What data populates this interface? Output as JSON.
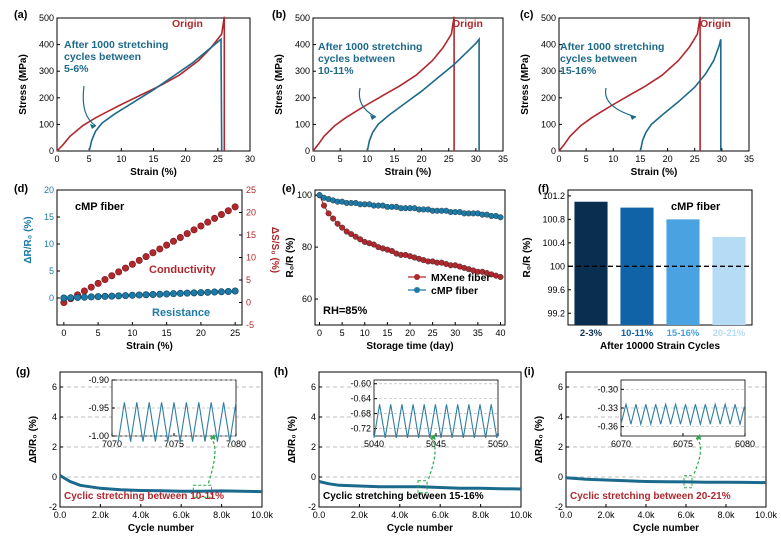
{
  "colors": {
    "origin": "#b0282e",
    "stretched": "#1d6a8a",
    "mxene": "#b0282e",
    "cmp": "#1d7aa6",
    "cycle": "#1b6a8e",
    "inset_line": "#2f7ea2",
    "callout": "#2aa84a",
    "bar_colors": [
      "#0a2e4f",
      "#0f63a6",
      "#4aa3e0",
      "#b6dcf5"
    ]
  },
  "chart_data": [
    {
      "panel": "(a)",
      "type": "line",
      "xlabel": "Strain (%)",
      "ylabel": "Stress (MPa)",
      "xlim": [
        0,
        30
      ],
      "ylim": [
        0,
        500
      ],
      "xticks": [
        0,
        5,
        10,
        15,
        20,
        25,
        30
      ],
      "yticks": [
        0,
        100,
        200,
        300,
        400,
        500
      ],
      "annotations": [
        "Origin",
        "After 1000 stretching",
        "cycles between",
        "5-6%"
      ],
      "series": [
        {
          "name": "Origin",
          "color_key": "origin",
          "x": [
            0,
            1,
            2,
            4,
            6,
            8,
            10,
            13,
            16,
            19,
            22,
            24,
            25.6,
            26,
            26
          ],
          "y": [
            0,
            25,
            55,
            95,
            125,
            150,
            175,
            210,
            245,
            285,
            340,
            390,
            440,
            505,
            0
          ]
        },
        {
          "name": "After 1000 stretching cycles between 5-6%",
          "color_key": "stretched",
          "x": [
            5,
            5.4,
            6,
            7,
            9,
            12,
            15,
            18,
            21,
            23.5,
            25,
            25.5,
            25.6
          ],
          "y": [
            0,
            40,
            75,
            105,
            140,
            185,
            230,
            280,
            330,
            380,
            410,
            420,
            0
          ]
        }
      ]
    },
    {
      "panel": "(b)",
      "type": "line",
      "xlabel": "Strain (%)",
      "ylabel": "Stress (MPa)",
      "xlim": [
        0,
        35
      ],
      "ylim": [
        0,
        500
      ],
      "xticks": [
        0,
        5,
        10,
        15,
        20,
        25,
        30,
        35
      ],
      "yticks": [
        0,
        100,
        200,
        300,
        400,
        500
      ],
      "annotations": [
        "Origin",
        "After 1000 stretching",
        "cycles between",
        "10-11%"
      ],
      "series": [
        {
          "name": "Origin",
          "color_key": "origin",
          "x": [
            0,
            1,
            2,
            4,
            6,
            8,
            10,
            13,
            16,
            19,
            22,
            24,
            25.5,
            26,
            26
          ],
          "y": [
            0,
            25,
            55,
            95,
            125,
            150,
            175,
            210,
            245,
            285,
            340,
            390,
            440,
            505,
            0
          ]
        },
        {
          "name": "After 1000 stretching cycles between 10-11%",
          "color_key": "stretched",
          "x": [
            10,
            10.4,
            11,
            12,
            14,
            17,
            20,
            23,
            26,
            28.5,
            30,
            30.6,
            30.6
          ],
          "y": [
            0,
            40,
            70,
            100,
            135,
            180,
            225,
            275,
            325,
            375,
            405,
            420,
            0
          ]
        }
      ]
    },
    {
      "panel": "(c)",
      "type": "line",
      "xlabel": "Strain (%)",
      "ylabel": "Stress (MPa)",
      "xlim": [
        0,
        35
      ],
      "ylim": [
        0,
        500
      ],
      "xticks": [
        0,
        5,
        10,
        15,
        20,
        25,
        30,
        35
      ],
      "yticks": [
        0,
        100,
        200,
        300,
        400,
        500
      ],
      "annotations": [
        "Origin",
        "After 1000 stretching",
        "cycles between",
        "15-16%"
      ],
      "series": [
        {
          "name": "Origin",
          "color_key": "origin",
          "x": [
            0,
            1,
            2,
            4,
            6,
            8,
            10,
            13,
            16,
            19,
            22,
            24,
            25.5,
            26,
            26
          ],
          "y": [
            0,
            25,
            55,
            95,
            125,
            150,
            175,
            210,
            245,
            285,
            340,
            390,
            440,
            505,
            0
          ]
        },
        {
          "name": "After 1000 stretching cycles between 15-16%",
          "color_key": "stretched",
          "x": [
            15,
            15.4,
            16,
            17,
            19,
            22,
            25,
            27,
            28.5,
            29.5,
            29.8,
            29.8
          ],
          "y": [
            0,
            40,
            70,
            100,
            135,
            185,
            240,
            290,
            340,
            395,
            420,
            0
          ]
        }
      ]
    },
    {
      "panel": "(d)",
      "type": "scatter",
      "title": "cMP fiber",
      "xlabel": "Strain (%)",
      "ylabel": "ΔR/R₀ (%)",
      "y2label": "ΔS/S₀ (%)",
      "xlim": [
        -1,
        26
      ],
      "ylim": [
        -5,
        20
      ],
      "y2lim": [
        -5,
        25
      ],
      "xticks": [
        0,
        5,
        10,
        15,
        20,
        25
      ],
      "yticks": [
        0,
        5,
        10,
        15,
        20
      ],
      "y2ticks": [
        -5,
        0,
        5,
        10,
        15,
        20,
        25
      ],
      "annotations": [
        "Conductivity",
        "Resistance"
      ],
      "series": [
        {
          "name": "Conductivity",
          "axis": "right",
          "color_key": "origin",
          "x": [
            0,
            1,
            2,
            3,
            4,
            5,
            6,
            7,
            8,
            9,
            10,
            11,
            12,
            13,
            14,
            15,
            16,
            17,
            18,
            19,
            20,
            21,
            22,
            23,
            24,
            25
          ],
          "y": [
            0,
            0.85,
            1.7,
            2.55,
            3.4,
            4.25,
            5.1,
            5.95,
            6.8,
            7.65,
            8.5,
            9.35,
            10.2,
            11.05,
            11.9,
            12.75,
            13.6,
            14.45,
            15.3,
            16.15,
            17,
            17.85,
            18.7,
            19.55,
            20.4,
            21.25
          ]
        },
        {
          "name": "Resistance",
          "axis": "left",
          "color_key": "cmp",
          "x": [
            0,
            1,
            2,
            3,
            4,
            5,
            6,
            7,
            8,
            9,
            10,
            11,
            12,
            13,
            14,
            15,
            16,
            17,
            18,
            19,
            20,
            21,
            22,
            23,
            24,
            25
          ],
          "y": [
            0,
            0.05,
            0.1,
            0.15,
            0.2,
            0.25,
            0.3,
            0.35,
            0.4,
            0.45,
            0.5,
            0.55,
            0.6,
            0.65,
            0.7,
            0.75,
            0.8,
            0.85,
            0.9,
            0.95,
            1.0,
            1.05,
            1.1,
            1.15,
            1.2,
            1.3
          ]
        }
      ]
    },
    {
      "panel": "(e)",
      "type": "scatter",
      "xlabel": "Storage time (day)",
      "ylabel": "R₀/R (%)",
      "xlim": [
        -1,
        41
      ],
      "ylim": [
        50,
        102
      ],
      "xticks": [
        0,
        5,
        10,
        15,
        20,
        25,
        30,
        35,
        40
      ],
      "yticks": [
        60,
        80,
        100
      ],
      "annotations": [
        "RH=85%"
      ],
      "legend": [
        "MXene fiber",
        "cMP fiber"
      ],
      "series": [
        {
          "name": "MXene fiber",
          "color_key": "mxene",
          "x": [
            0,
            1,
            2,
            3,
            4,
            5,
            6,
            7,
            8,
            9,
            10,
            11,
            12,
            13,
            14,
            15,
            16,
            17,
            18,
            19,
            20,
            21,
            22,
            23,
            24,
            25,
            26,
            27,
            28,
            29,
            30,
            31,
            32,
            33,
            34,
            35,
            36,
            37,
            38,
            39,
            40
          ],
          "y": [
            100,
            96,
            93,
            91,
            89,
            87.5,
            86,
            85,
            84,
            83,
            82,
            81.5,
            81,
            80,
            79.5,
            79,
            78.5,
            77.5,
            77,
            77,
            76.5,
            76,
            75.5,
            75,
            74.5,
            74.5,
            74,
            74,
            73.5,
            73,
            73,
            72.5,
            72,
            71.5,
            71,
            70.5,
            70.5,
            70,
            69.5,
            69,
            68.5
          ]
        },
        {
          "name": "cMP fiber",
          "color_key": "cmp",
          "x": [
            0,
            1,
            2,
            3,
            4,
            5,
            6,
            7,
            8,
            9,
            10,
            11,
            12,
            13,
            14,
            15,
            16,
            17,
            18,
            19,
            20,
            21,
            22,
            23,
            24,
            25,
            26,
            27,
            28,
            29,
            30,
            31,
            32,
            33,
            34,
            35,
            36,
            37,
            38,
            39,
            40
          ],
          "y": [
            100,
            99,
            98.5,
            98,
            97.5,
            97.5,
            97,
            97,
            97,
            96.5,
            96.5,
            96.5,
            96,
            96,
            96,
            95.5,
            95.5,
            95.5,
            95,
            95,
            95,
            95,
            94.5,
            94.5,
            94.5,
            94,
            94,
            94,
            94,
            93.5,
            93.5,
            93.5,
            93,
            93,
            93,
            93,
            92.5,
            92.5,
            92,
            92,
            91.5
          ]
        }
      ]
    },
    {
      "panel": "(f)",
      "type": "bar",
      "title": "cMP fiber",
      "xlabel": "After 10000 Strain Cycles",
      "ylabel": "R₀/R (%)",
      "categories": [
        "2-3%",
        "10-11%",
        "15-16%",
        "20-21%"
      ],
      "values": [
        101.1,
        101.0,
        100.8,
        100.5
      ],
      "ylim": [
        99.0,
        101.3
      ],
      "yticks": [
        99.2,
        99.6,
        100.0,
        100.4,
        100.8,
        101.2
      ],
      "reference_line": 100.0
    },
    {
      "panel": "(g)",
      "type": "line",
      "xlabel": "Cycle number",
      "ylabel": "ΔR/R₀ (%)",
      "xlim": [
        0,
        10000
      ],
      "ylim": [
        -2,
        7
      ],
      "xticks": [
        "0.0",
        "2.0k",
        "4.0k",
        "6.0k",
        "8.0k",
        "10.0k"
      ],
      "yticks": [
        -2,
        0,
        2,
        4,
        6
      ],
      "annotations": [
        "Cyclic stretching between 10-11%"
      ],
      "series": [
        {
          "name": "ΔR/R₀",
          "color_key": "cycle",
          "x": [
            0,
            500,
            1000,
            2000,
            3000,
            4000,
            5000,
            6000,
            7000,
            8000,
            9000,
            10000
          ],
          "y": [
            0.1,
            -0.3,
            -0.55,
            -0.75,
            -0.85,
            -0.9,
            -0.92,
            -0.95,
            -0.95,
            -0.93,
            -0.95,
            -0.97
          ]
        }
      ],
      "inset": {
        "xlim": [
          7070,
          7080
        ],
        "ylim": [
          -1.0,
          -0.9
        ],
        "xticks": [
          7070,
          7075,
          7080
        ],
        "yticks": [
          "-0.90",
          "-0.95",
          "-1.00"
        ],
        "period": 1.0,
        "baseline": -0.975,
        "amplitude": 0.035,
        "x_start": 7070.5,
        "x_end": 7080,
        "highlight_x": [
          6600,
          7500
        ]
      }
    },
    {
      "panel": "(h)",
      "type": "line",
      "xlabel": "Cycle number",
      "ylabel": "ΔR/R₀ (%)",
      "xlim": [
        0,
        10000
      ],
      "ylim": [
        -2,
        7
      ],
      "xticks": [
        "0.0",
        "2.0k",
        "4.0k",
        "6.0k",
        "8.0k",
        "10.0k"
      ],
      "yticks": [
        -2,
        0,
        2,
        4,
        6
      ],
      "annotations": [
        "Cyclic stretching between 15-16%"
      ],
      "series": [
        {
          "name": "ΔR/R₀",
          "color_key": "cycle",
          "x": [
            0,
            500,
            1000,
            2000,
            3000,
            4000,
            5000,
            6000,
            7000,
            8000,
            9000,
            10000
          ],
          "y": [
            -0.3,
            -0.45,
            -0.55,
            -0.6,
            -0.65,
            -0.65,
            -0.65,
            -0.7,
            -0.75,
            -0.75,
            -0.78,
            -0.8
          ]
        }
      ],
      "inset": {
        "xlim": [
          5040,
          5050
        ],
        "ylim": [
          -0.74,
          -0.59
        ],
        "xticks": [
          5040,
          5045,
          5050
        ],
        "yticks": [
          "-0.60",
          "-0.64",
          "-0.68",
          "-0.72"
        ],
        "period": 0.9,
        "baseline": -0.7,
        "amplitude": 0.045,
        "x_start": 5040,
        "x_end": 5050,
        "highlight_x": [
          4900,
          5350
        ]
      }
    },
    {
      "panel": "(i)",
      "type": "line",
      "xlabel": "Cycle number",
      "ylabel": "ΔR/R₀ (%)",
      "xlim": [
        0,
        10000
      ],
      "ylim": [
        -2,
        7
      ],
      "xticks": [
        "0.0",
        "2.0k",
        "4.0k",
        "6.0k",
        "8.0k",
        "10.0k"
      ],
      "yticks": [
        -2,
        0,
        2,
        4,
        6
      ],
      "annotations": [
        "Cyclic stretching between 20-21%"
      ],
      "series": [
        {
          "name": "ΔR/R₀",
          "color_key": "cycle",
          "x": [
            0,
            500,
            1000,
            2000,
            3000,
            4000,
            5000,
            6000,
            7000,
            8000,
            9000,
            10000
          ],
          "y": [
            -0.05,
            -0.1,
            -0.15,
            -0.2,
            -0.25,
            -0.3,
            -0.32,
            -0.33,
            -0.35,
            -0.35,
            -0.36,
            -0.37
          ]
        }
      ],
      "inset": {
        "xlim": [
          6070,
          6080
        ],
        "ylim": [
          -0.375,
          -0.285
        ],
        "xticks": [
          6070,
          6075,
          6080
        ],
        "yticks": [
          "-0.30",
          "-0.33",
          "-0.36"
        ],
        "period": 0.8,
        "baseline": -0.34,
        "amplitude": 0.016,
        "x_start": 6070,
        "x_end": 6080,
        "highlight_x": [
          5900,
          6300
        ]
      }
    }
  ]
}
